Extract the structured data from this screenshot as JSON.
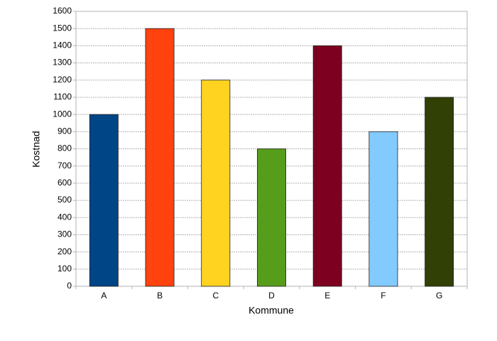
{
  "chart_data": {
    "type": "bar",
    "x_label": "Kommune",
    "y_label": "Kostnad",
    "categories": [
      "A",
      "B",
      "C",
      "D",
      "E",
      "F",
      "G"
    ],
    "values": [
      1000,
      1500,
      1200,
      800,
      1400,
      900,
      1100
    ],
    "colors": [
      "#004586",
      "#ff420e",
      "#ffd320",
      "#579d1c",
      "#7e0021",
      "#83caff",
      "#314004"
    ],
    "ylim": [
      0,
      1600
    ],
    "yticks": [
      0,
      100,
      200,
      300,
      400,
      500,
      600,
      700,
      800,
      900,
      1000,
      1100,
      1200,
      1300,
      1400,
      1500,
      1600
    ],
    "grid": true
  }
}
